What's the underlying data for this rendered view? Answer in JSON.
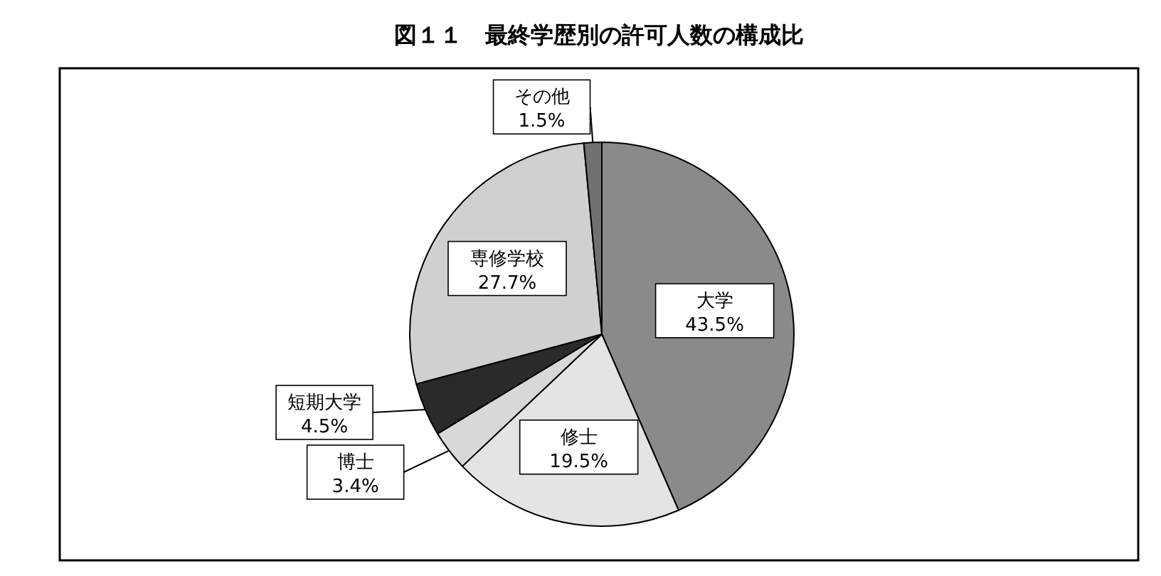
{
  "chart_data": {
    "type": "pie",
    "title": "図１１　最終学歴別の許可人数の構成比",
    "categories": [
      "大学",
      "修士",
      "博士",
      "短期大学",
      "専修学校",
      "その他"
    ],
    "values": [
      43.5,
      19.5,
      3.4,
      4.5,
      27.7,
      1.5
    ],
    "value_labels": [
      "43.5%",
      "19.5%",
      "3.4%",
      "4.5%",
      "27.7%",
      "1.5%"
    ],
    "colors": [
      "#8a8a8a",
      "#e4e4e4",
      "#d8d8d8",
      "#2a2a2a",
      "#d0d0d0",
      "#707070"
    ]
  }
}
